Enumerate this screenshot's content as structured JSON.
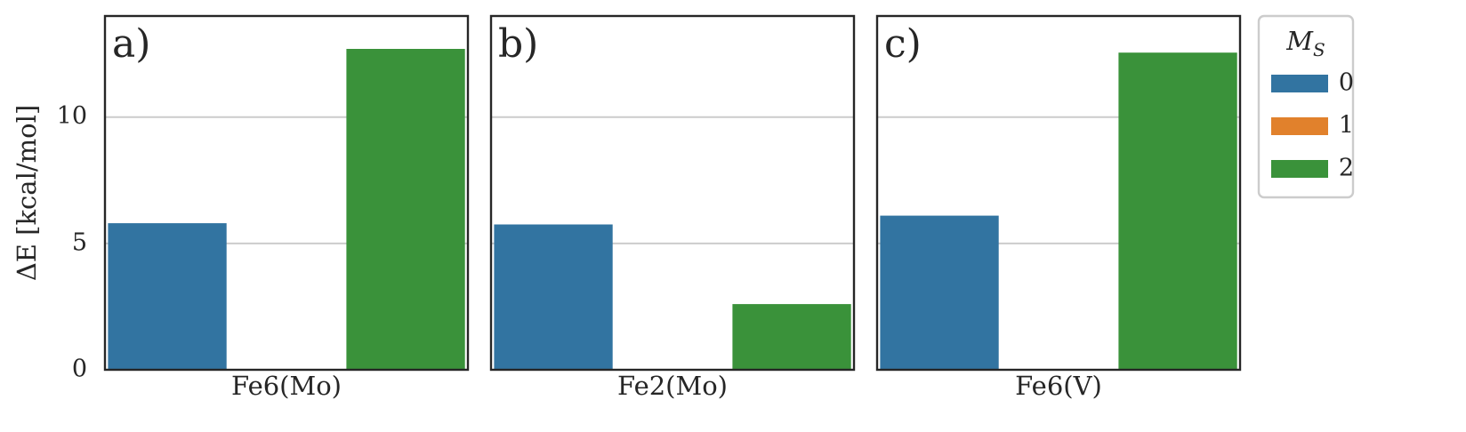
{
  "chart_data": {
    "type": "bar",
    "ylabel": "ΔE [kcal/mol]",
    "ylim": [
      0,
      14
    ],
    "yticks": [
      0,
      5,
      10
    ],
    "grid": "horizontal",
    "legend": {
      "title": "M_S",
      "title_main": "M",
      "title_sub": "S",
      "placement": "outside-right",
      "entries": [
        {
          "label": "0",
          "color": "#3274a1"
        },
        {
          "label": "1",
          "color": "#e1812c"
        },
        {
          "label": "2",
          "color": "#3a923a"
        }
      ]
    },
    "panels": [
      {
        "letter": "a)",
        "category": "Fe6(Mo)",
        "values": [
          5.8,
          null,
          12.7
        ]
      },
      {
        "letter": "b)",
        "category": "Fe2(Mo)",
        "values": [
          5.75,
          null,
          2.6
        ]
      },
      {
        "letter": "c)",
        "category": "Fe6(V)",
        "values": [
          6.1,
          null,
          12.55
        ]
      }
    ]
  }
}
